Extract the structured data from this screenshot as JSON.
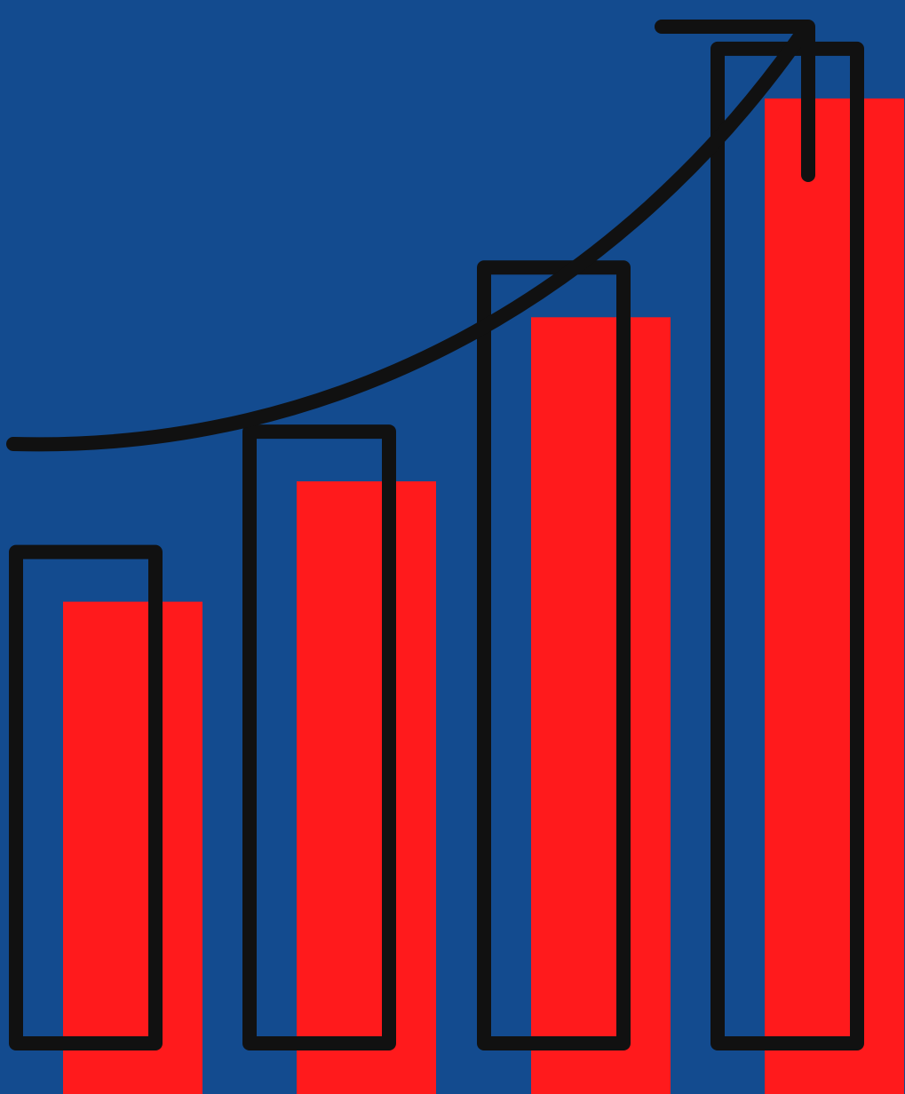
{
  "illustration": {
    "subject": "growth-bar-chart-icon",
    "colors": {
      "background": "#134b8f",
      "bar_fill": "#ff1a1c",
      "outline": "#111111"
    },
    "bars": [
      {
        "name": "bar-1",
        "level": 0.45
      },
      {
        "name": "bar-2",
        "level": 0.56
      },
      {
        "name": "bar-3",
        "level": 0.71
      },
      {
        "name": "bar-4",
        "level": 0.91
      }
    ],
    "icons": [
      "growth-arrow-icon",
      "bar-outline-icon"
    ]
  }
}
